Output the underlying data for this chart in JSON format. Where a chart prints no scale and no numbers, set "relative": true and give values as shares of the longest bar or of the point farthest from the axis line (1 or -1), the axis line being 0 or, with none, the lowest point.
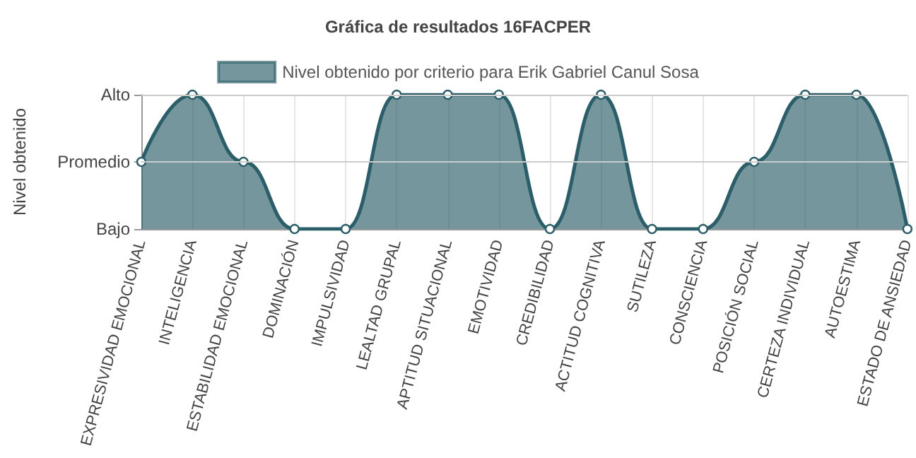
{
  "chart_data": {
    "type": "area",
    "title": "Gráfica de resultados 16FACPER",
    "ylabel": "Nivel obtenido",
    "categories": [
      "EXPRESIVIDAD EMOCIONAL",
      "INTELIGENCIA",
      "ESTABILIDAD EMOCIONAL",
      "DOMINACIÓN",
      "IMPULSIVIDAD",
      "LEALTAD GRUPAL",
      "APTITUD SITUACIONAL",
      "EMOTIVIDAD",
      "CREDIBILIDAD",
      "ACTITUD COGNITIVA",
      "SUTILEZA",
      "CONSCIENCIA",
      "POSICIÓN SOCIAL",
      "CERTEZA INDIVIDUAL",
      "AUTOESTIMA",
      "ESTADO DE ANSIEDAD"
    ],
    "y_categories": [
      "Alto",
      "Promedio",
      "Bajo"
    ],
    "relative": true,
    "series": [
      {
        "name": "Nivel obtenido por criterio para Erik Gabriel Canul Sosa",
        "color": "#2b5e68",
        "values": [
          0.5,
          1,
          0.5,
          0,
          0,
          1,
          1,
          1,
          0,
          1,
          0,
          0,
          0.5,
          1,
          1,
          0
        ]
      }
    ],
    "ref_lines": [
      {
        "axis": "y",
        "value": 0.5,
        "color": "#cccccc"
      },
      {
        "axis": "y",
        "value": 1,
        "color": "#cccccc"
      }
    ],
    "grid": "x",
    "legend": "top",
    "marker": "circle",
    "line_style": "solid"
  }
}
